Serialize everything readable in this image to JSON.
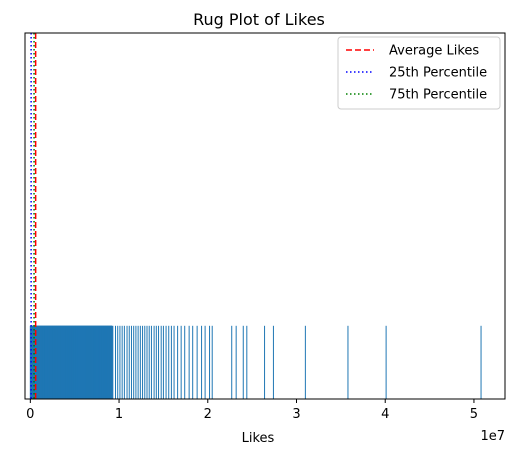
{
  "chart_data": {
    "type": "rug",
    "title": "Rug Plot of Likes",
    "xlabel": "Likes",
    "ylabel": "",
    "x_offset_label": "1e7",
    "xlim": [
      -600000,
      53500000
    ],
    "ylim": [
      0,
      1
    ],
    "rug_height_fraction": 0.2,
    "x_ticks": [
      {
        "value": 0,
        "label": "0"
      },
      {
        "value": 10000000,
        "label": "1"
      },
      {
        "value": 20000000,
        "label": "2"
      },
      {
        "value": 30000000,
        "label": "3"
      },
      {
        "value": 40000000,
        "label": "4"
      },
      {
        "value": 50000000,
        "label": "5"
      }
    ],
    "rug_color": "#1f77b4",
    "rug_dense_ranges": [
      {
        "from": 0,
        "to": 9200000,
        "step": 25000
      }
    ],
    "rug_values": [
      9300000,
      9600000,
      9850000,
      10100000,
      10350000,
      10600000,
      10900000,
      11150000,
      11400000,
      11650000,
      11900000,
      12150000,
      12400000,
      12650000,
      12900000,
      13150000,
      13400000,
      13650000,
      13950000,
      14200000,
      14450000,
      14750000,
      15000000,
      15300000,
      15600000,
      15900000,
      16200000,
      16600000,
      17000000,
      17400000,
      17900000,
      18300000,
      18800000,
      19300000,
      19700000,
      20200000,
      20500000,
      22700000,
      23200000,
      24000000,
      24400000,
      26400000,
      27400000,
      31000000,
      35800000,
      40100000,
      50800000
    ],
    "reference_lines": [
      {
        "name": "Average Likes",
        "value": 600000,
        "color": "#ff0000",
        "style": "dashed"
      },
      {
        "name": "25th Percentile",
        "value": 90000,
        "color": "#0000ff",
        "style": "dotted"
      },
      {
        "name": "75th Percentile",
        "value": 420000,
        "color": "#008000",
        "style": "dotted"
      }
    ],
    "legend_position": "upper right"
  }
}
